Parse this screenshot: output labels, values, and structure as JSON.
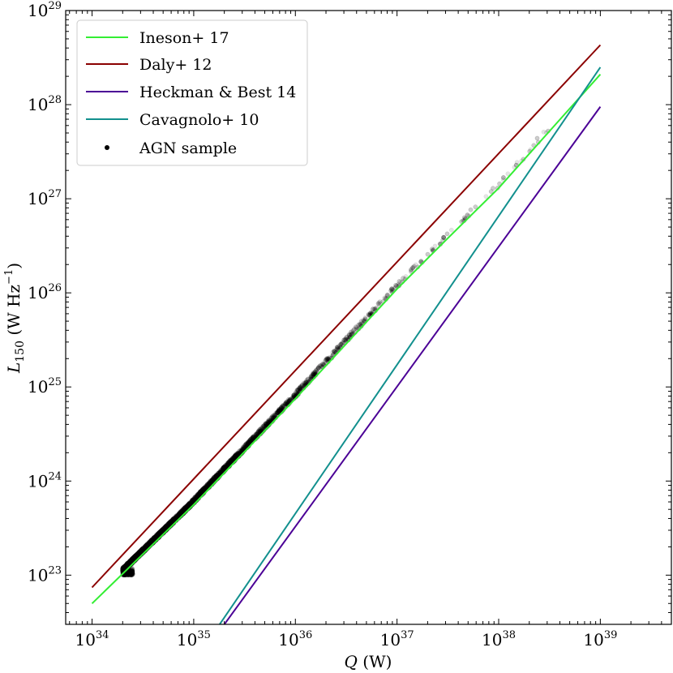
{
  "chart_data": {
    "type": "scatter",
    "title": "",
    "xlabel_symbol": "Q",
    "xlabel_unit": " (W)",
    "ylabel_symbol": "L",
    "ylabel_sub": "150",
    "ylabel_unit_main": " (W Hz",
    "ylabel_unit_sup": "−1",
    "ylabel_unit_close": ")",
    "x_scale": "log",
    "y_scale": "log",
    "xlim": [
      5.5e+33,
      5e+39
    ],
    "ylim": [
      3e+22,
      1e+29
    ],
    "x_ticks": [
      {
        "value": 1e+34,
        "base": "10",
        "exp": "34"
      },
      {
        "value": 1e+35,
        "base": "10",
        "exp": "35"
      },
      {
        "value": 1e+36,
        "base": "10",
        "exp": "36"
      },
      {
        "value": 1e+37,
        "base": "10",
        "exp": "37"
      },
      {
        "value": 1e+38,
        "base": "10",
        "exp": "38"
      },
      {
        "value": 1e+39,
        "base": "10",
        "exp": "39"
      }
    ],
    "y_ticks": [
      {
        "value": 1e+23,
        "base": "10",
        "exp": "23"
      },
      {
        "value": 1e+24,
        "base": "10",
        "exp": "24"
      },
      {
        "value": 1e+25,
        "base": "10",
        "exp": "25"
      },
      {
        "value": 1e+26,
        "base": "10",
        "exp": "26"
      },
      {
        "value": 1e+27,
        "base": "10",
        "exp": "27"
      },
      {
        "value": 1e+28,
        "base": "10",
        "exp": "28"
      },
      {
        "value": 1e+29,
        "base": "10",
        "exp": "29"
      }
    ],
    "grid": false,
    "legend_position": "top-left",
    "series": [
      {
        "name": "Ineson+ 17",
        "kind": "line",
        "color": "#33ee33",
        "points": [
          [
            1e+34,
            5e+22
          ],
          [
            1e+35,
            5.6e+23
          ],
          [
            1e+36,
            7.5e+24
          ],
          [
            1e+37,
            1.1e+26
          ],
          [
            3e+37,
            3.6e+26
          ],
          [
            1e+38,
            1.3e+27
          ],
          [
            3e+38,
            4.9e+27
          ],
          [
            1e+39,
            2.1e+28
          ]
        ]
      },
      {
        "name": "Daly+ 12",
        "kind": "line",
        "color": "#8b0000",
        "points": [
          [
            1e+34,
            7.4e+22
          ],
          [
            1e+39,
            4.3e+28
          ]
        ]
      },
      {
        "name": "Heckman & Best 14",
        "kind": "line",
        "color": "#4b0096",
        "points": [
          [
            2e+35,
            3e+22
          ],
          [
            1e+39,
            9.5e+27
          ]
        ]
      },
      {
        "name": "Cavagnolo+ 10",
        "kind": "line",
        "color": "#12908e",
        "points": [
          [
            1.8e+35,
            3e+22
          ],
          [
            1e+39,
            2.5e+28
          ]
        ]
      },
      {
        "name": "AGN sample",
        "kind": "scatter",
        "color": "#000000"
      }
    ],
    "scatter_model": {
      "n_points": 7000,
      "log_q_min": 34.3,
      "log_q_max": 39.4,
      "log_l_min": 23.0
    }
  }
}
